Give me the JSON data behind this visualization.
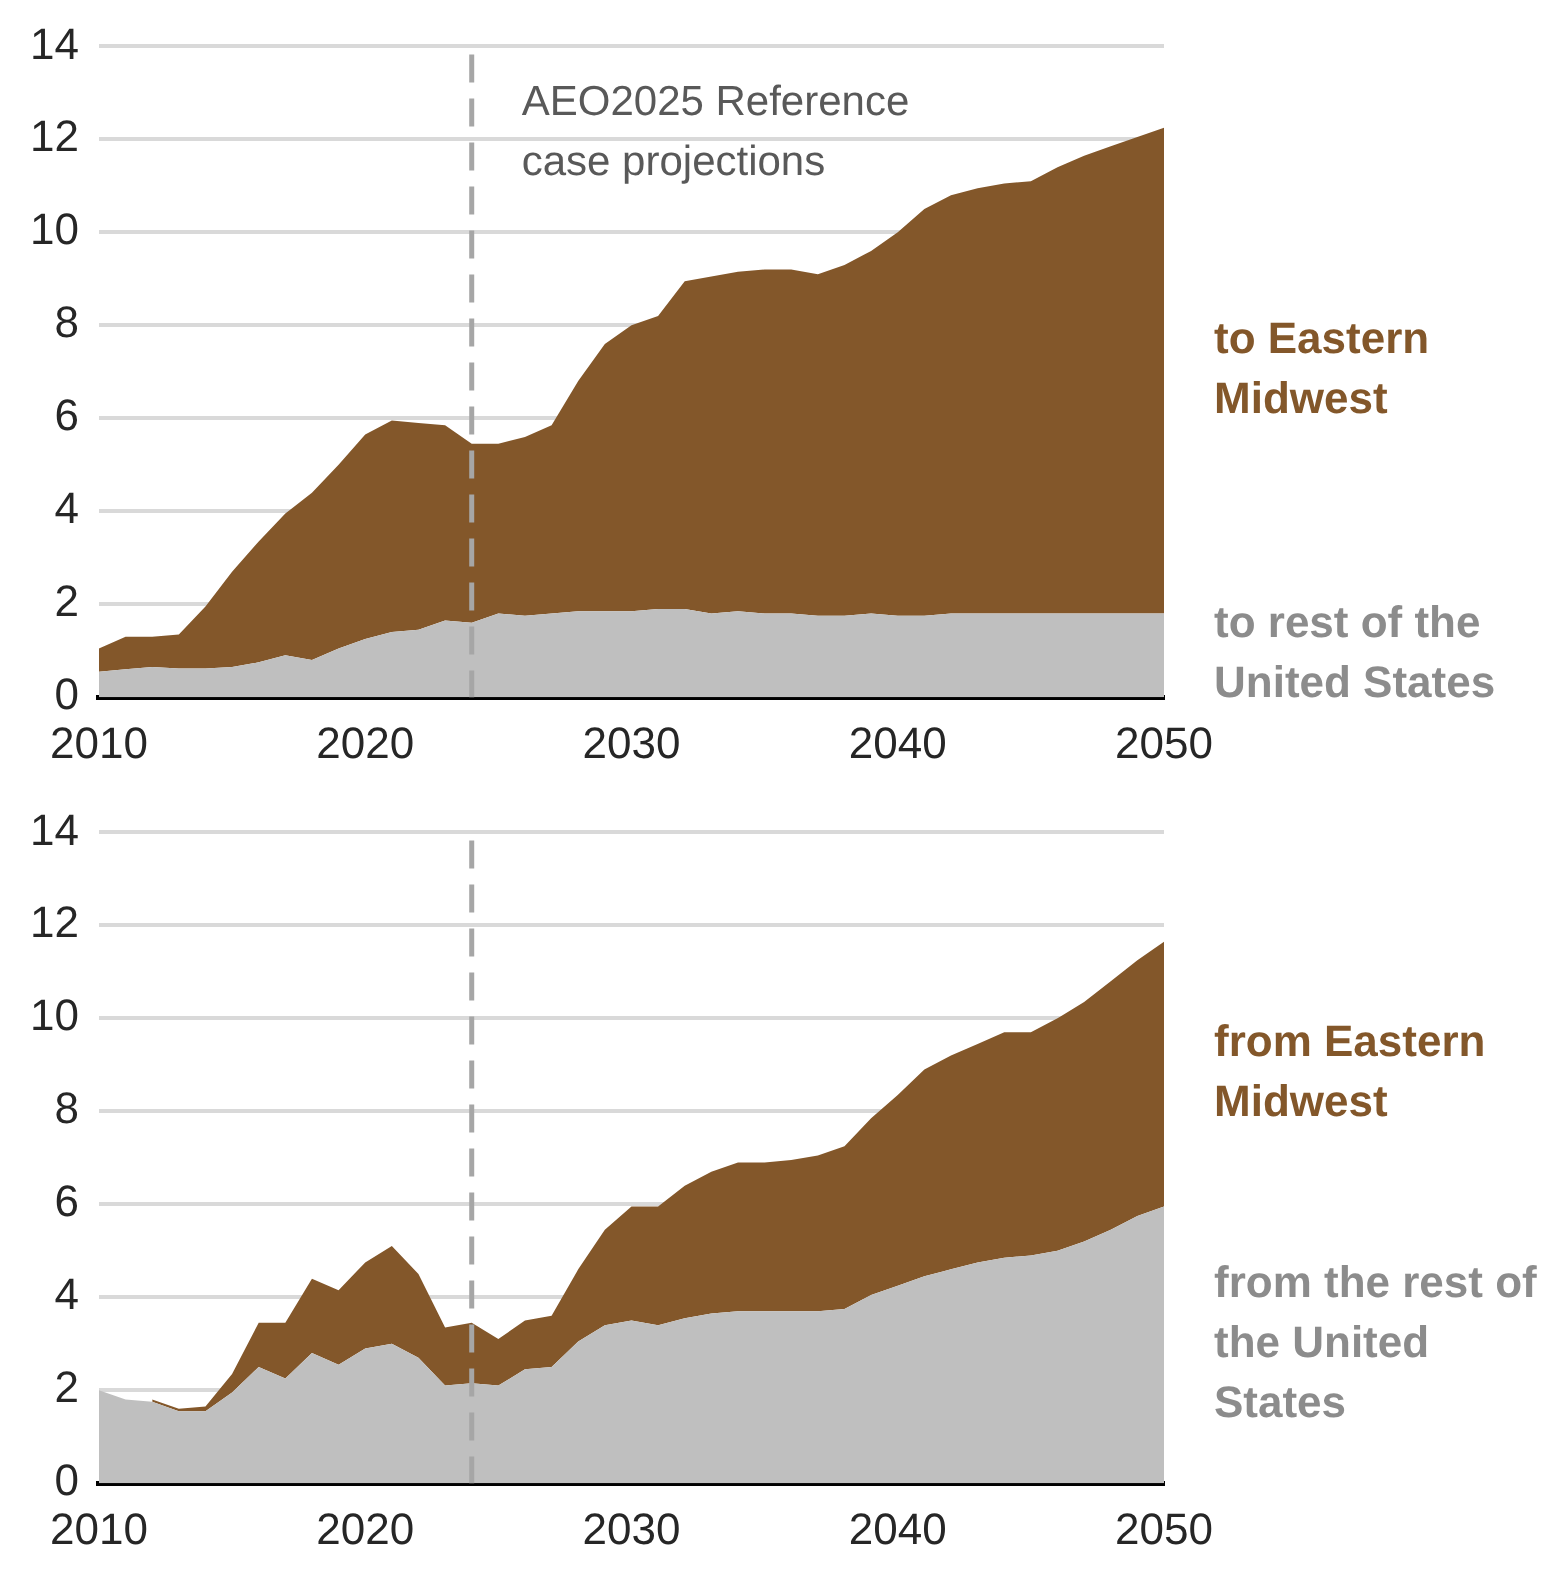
{
  "chart_data": [
    {
      "type": "area",
      "stacked": true,
      "x": [
        2010,
        2011,
        2012,
        2013,
        2014,
        2015,
        2016,
        2017,
        2018,
        2019,
        2020,
        2021,
        2022,
        2023,
        2024,
        2025,
        2026,
        2027,
        2028,
        2029,
        2030,
        2031,
        2032,
        2033,
        2034,
        2035,
        2036,
        2037,
        2038,
        2039,
        2040,
        2041,
        2042,
        2043,
        2044,
        2045,
        2046,
        2047,
        2048,
        2049,
        2050
      ],
      "xlim": [
        2010,
        2050
      ],
      "xticks": [
        2010,
        2020,
        2030,
        2040,
        2050
      ],
      "ylim": [
        0,
        14
      ],
      "yticks": [
        0,
        2,
        4,
        6,
        8,
        10,
        12,
        14
      ],
      "grid": "y",
      "series": [
        {
          "name": "to rest of the United States",
          "color": "#bfbfbf",
          "values": [
            0.55,
            0.6,
            0.65,
            0.62,
            0.62,
            0.65,
            0.75,
            0.9,
            0.8,
            1.05,
            1.25,
            1.4,
            1.45,
            1.65,
            1.6,
            1.8,
            1.75,
            1.8,
            1.85,
            1.85,
            1.85,
            1.9,
            1.9,
            1.8,
            1.85,
            1.8,
            1.8,
            1.75,
            1.75,
            1.8,
            1.75,
            1.75,
            1.8,
            1.8,
            1.8,
            1.8,
            1.8,
            1.8,
            1.8,
            1.8,
            1.8
          ]
        },
        {
          "name": "to Eastern Midwest",
          "color": "#83572a",
          "values": [
            0.5,
            0.7,
            0.65,
            0.73,
            1.33,
            2.05,
            2.6,
            3.05,
            3.6,
            3.95,
            4.4,
            4.55,
            4.45,
            4.2,
            3.85,
            3.65,
            3.85,
            4.05,
            4.95,
            5.75,
            6.15,
            6.3,
            7.05,
            7.25,
            7.3,
            7.4,
            7.4,
            7.35,
            7.55,
            7.8,
            8.25,
            8.75,
            9.0,
            9.15,
            9.25,
            9.3,
            9.6,
            9.85,
            10.05,
            10.25,
            10.45
          ]
        }
      ],
      "ref_lines": [
        {
          "axis": "x",
          "value": 2024,
          "label": "AEO2025 Reference case projections",
          "color": "#a6a6a6",
          "line_style": "dashed"
        }
      ]
    },
    {
      "type": "area",
      "stacked": true,
      "x": [
        2010,
        2011,
        2012,
        2013,
        2014,
        2015,
        2016,
        2017,
        2018,
        2019,
        2020,
        2021,
        2022,
        2023,
        2024,
        2025,
        2026,
        2027,
        2028,
        2029,
        2030,
        2031,
        2032,
        2033,
        2034,
        2035,
        2036,
        2037,
        2038,
        2039,
        2040,
        2041,
        2042,
        2043,
        2044,
        2045,
        2046,
        2047,
        2048,
        2049,
        2050
      ],
      "xlim": [
        2010,
        2050
      ],
      "xticks": [
        2010,
        2020,
        2030,
        2040,
        2050
      ],
      "ylim": [
        0,
        14
      ],
      "yticks": [
        0,
        2,
        4,
        6,
        8,
        10,
        12,
        14
      ],
      "grid": "y",
      "series": [
        {
          "name": "from the rest of the United States",
          "color": "#bfbfbf",
          "values": [
            2.0,
            1.8,
            1.75,
            1.55,
            1.55,
            1.95,
            2.5,
            2.25,
            2.8,
            2.55,
            2.9,
            3.0,
            2.7,
            2.1,
            2.15,
            2.1,
            2.45,
            2.5,
            3.05,
            3.4,
            3.5,
            3.4,
            3.55,
            3.65,
            3.7,
            3.7,
            3.7,
            3.7,
            3.75,
            4.05,
            4.25,
            4.45,
            4.6,
            4.75,
            4.85,
            4.9,
            5.0,
            5.2,
            5.45,
            5.75,
            5.95
          ]
        },
        {
          "name": "from Eastern Midwest",
          "color": "#83572a",
          "values": [
            null,
            null,
            0.05,
            0.05,
            0.1,
            0.4,
            0.95,
            1.2,
            1.6,
            1.6,
            1.85,
            2.1,
            1.8,
            1.25,
            1.3,
            1.0,
            1.05,
            1.1,
            1.55,
            2.05,
            2.45,
            2.55,
            2.85,
            3.05,
            3.2,
            3.2,
            3.25,
            3.35,
            3.5,
            3.8,
            4.1,
            4.45,
            4.6,
            4.7,
            4.85,
            4.8,
            5.0,
            5.15,
            5.35,
            5.5,
            5.7
          ]
        }
      ],
      "ref_lines": [
        {
          "axis": "x",
          "value": 2024,
          "color": "#a6a6a6",
          "line_style": "dashed"
        }
      ]
    }
  ]
}
